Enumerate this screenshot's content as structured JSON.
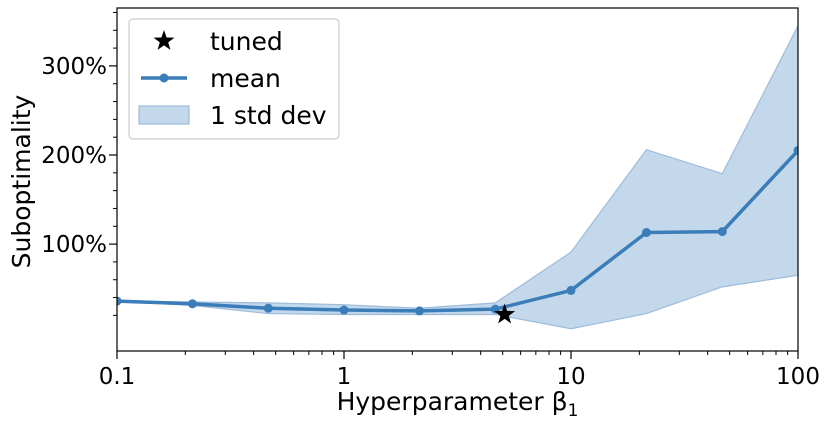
{
  "chart_data": {
    "type": "line",
    "title": "",
    "xlabel": "Hyperparameter β",
    "xlabel_subscript": "1",
    "ylabel": "Suboptimality",
    "xscale": "log",
    "xlim": [
      0.1,
      100
    ],
    "ylim": [
      -0.2,
      3.65
    ],
    "grid": false,
    "legend_position": "top-left",
    "x_ticks": [
      {
        "value": 0.1,
        "label": "0.1"
      },
      {
        "value": 1,
        "label": "1"
      },
      {
        "value": 10,
        "label": "10"
      },
      {
        "value": 100,
        "label": "100"
      }
    ],
    "y_ticks": [
      {
        "value": 1,
        "label": "100%"
      },
      {
        "value": 2,
        "label": "200%"
      },
      {
        "value": 3,
        "label": "300%"
      }
    ],
    "y_minor_step": 0.2,
    "series": [
      {
        "name": "mean",
        "color": "#3a7db8",
        "x": [
          0.1,
          0.215,
          0.464,
          1,
          2.15,
          4.64,
          10,
          21.5,
          46.4,
          100
        ],
        "y": [
          0.36,
          0.33,
          0.28,
          0.26,
          0.25,
          0.27,
          0.48,
          1.13,
          1.14,
          2.05
        ],
        "band_lower": [
          0.36,
          0.31,
          0.22,
          0.21,
          0.21,
          0.21,
          0.05,
          0.22,
          0.52,
          0.65
        ],
        "band_upper": [
          0.36,
          0.35,
          0.34,
          0.32,
          0.28,
          0.34,
          0.91,
          2.06,
          1.79,
          3.45
        ]
      }
    ],
    "band_label": "1 std dev",
    "band_color": "#c4d8ec",
    "band_edge_color": "#9dbcdb",
    "marker": {
      "name": "tuned",
      "x": 5.1,
      "y": 0.21,
      "color": "#000000"
    }
  }
}
